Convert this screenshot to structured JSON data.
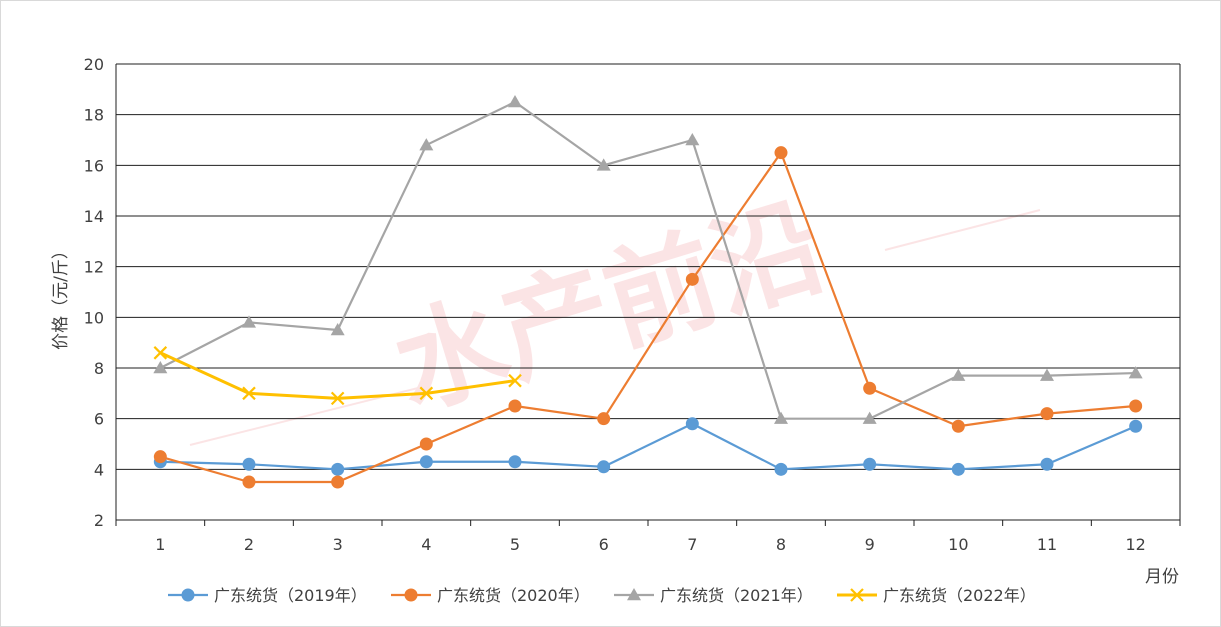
{
  "chart_data": {
    "type": "line",
    "title": "",
    "xlabel": "月份",
    "ylabel": "价格（元/斤）",
    "categories": [
      "1",
      "2",
      "3",
      "4",
      "5",
      "6",
      "7",
      "8",
      "9",
      "10",
      "11",
      "12"
    ],
    "ylim": [
      2,
      20
    ],
    "yticks": [
      "2",
      "4",
      "6",
      "8",
      "10",
      "12",
      "14",
      "16",
      "18",
      "20"
    ],
    "grid": true,
    "legend_position": "bottom",
    "watermark": "水产前沿",
    "series": [
      {
        "name": "广东统货（2019年）",
        "color": "#5b9bd5",
        "marker": "circle",
        "values": [
          4.3,
          4.2,
          4.0,
          4.3,
          4.3,
          4.1,
          5.8,
          4.0,
          4.2,
          4.0,
          4.2,
          5.7
        ]
      },
      {
        "name": "广东统货（2020年）",
        "color": "#ed7d31",
        "marker": "circle",
        "values": [
          4.5,
          3.5,
          3.5,
          5.0,
          6.5,
          6.0,
          11.5,
          16.5,
          7.2,
          5.7,
          6.2,
          6.5
        ]
      },
      {
        "name": "广东统货（2021年）",
        "color": "#a5a5a5",
        "marker": "triangle",
        "values": [
          8.0,
          9.8,
          9.5,
          16.8,
          18.5,
          16.0,
          17.0,
          6.0,
          6.0,
          7.7,
          7.7,
          7.8
        ]
      },
      {
        "name": "广东统货（2022年）",
        "color": "#ffc000",
        "marker": "x",
        "values": [
          8.6,
          7.0,
          6.8,
          7.0,
          7.5,
          null,
          null,
          null,
          null,
          null,
          null,
          null
        ]
      }
    ]
  }
}
